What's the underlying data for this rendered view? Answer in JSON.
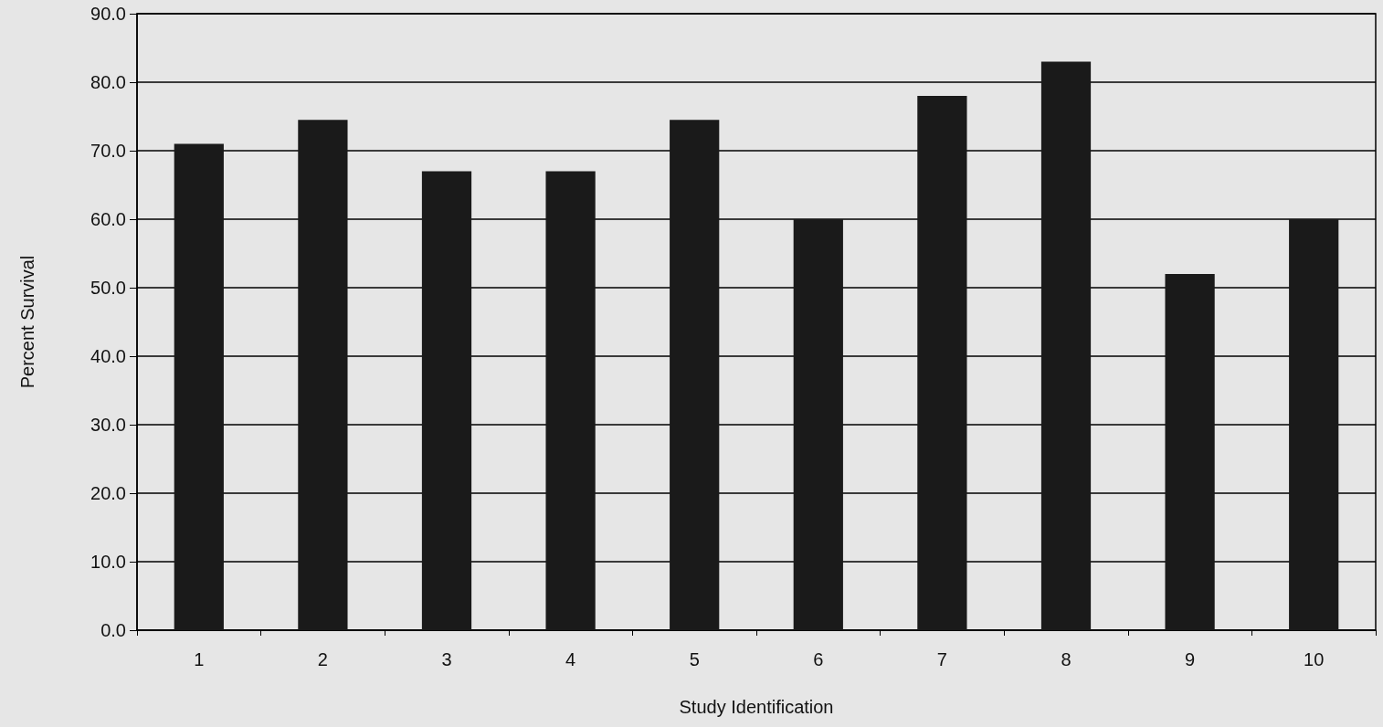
{
  "chart_data": {
    "type": "bar",
    "xlabel": "Study Identification",
    "ylabel": "Percent Survival",
    "categories": [
      "1",
      "2",
      "3",
      "4",
      "5",
      "6",
      "7",
      "8",
      "9",
      "10"
    ],
    "values": [
      71,
      74.5,
      67,
      67,
      74.5,
      60,
      78,
      83,
      52,
      60
    ],
    "color": "#1a1a1a",
    "ylim": [
      0,
      90
    ],
    "yticks": [
      {
        "value": 0,
        "label": "0.0"
      },
      {
        "value": 10,
        "label": "10.0"
      },
      {
        "value": 20,
        "label": "20.0"
      },
      {
        "value": 30,
        "label": "30.0"
      },
      {
        "value": 40,
        "label": "40.0"
      },
      {
        "value": 50,
        "label": "50.0"
      },
      {
        "value": 60,
        "label": "60.0"
      },
      {
        "value": 70,
        "label": "70.0"
      },
      {
        "value": 80,
        "label": "80.0"
      },
      {
        "value": 90,
        "label": "90.0"
      }
    ],
    "grid": "y"
  }
}
